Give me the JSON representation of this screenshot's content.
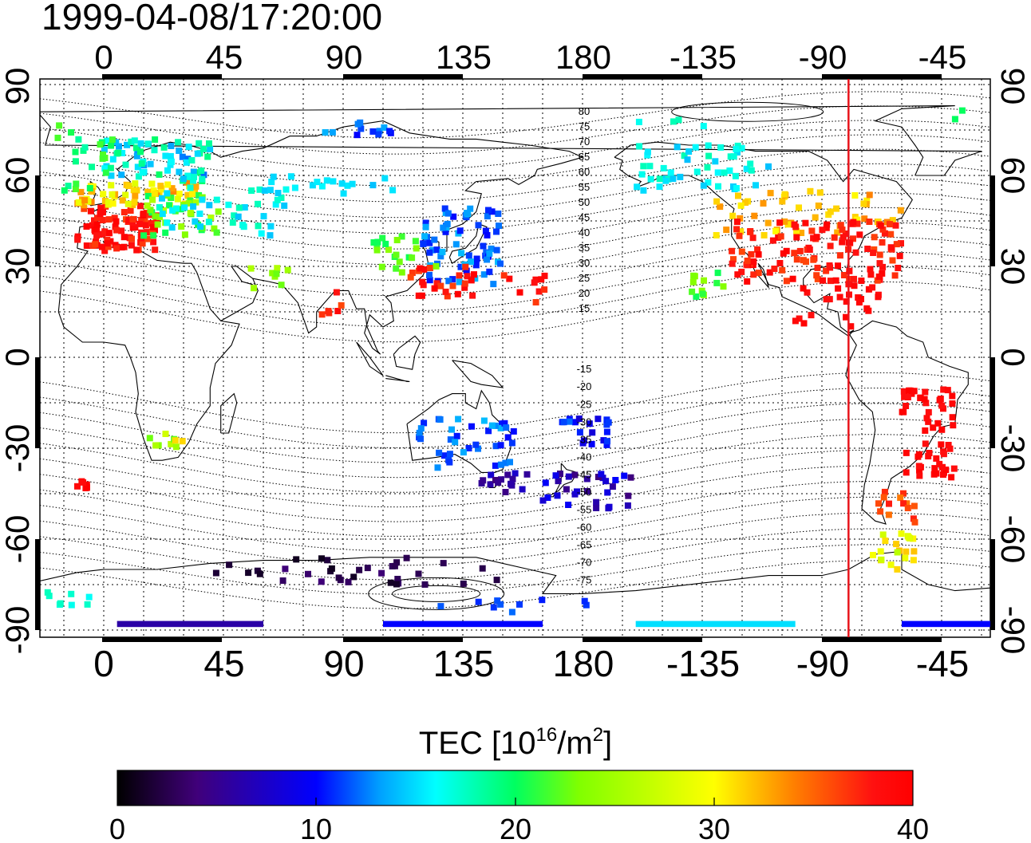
{
  "timestamp": "1999-04-08/17:20:00",
  "map": {
    "top_lon_labels": [
      "0",
      "45",
      "90",
      "135",
      "180",
      "-135",
      "-90",
      "-45"
    ],
    "bottom_lon_labels": [
      "0",
      "45",
      "90",
      "135",
      "180",
      "-135",
      "-90",
      "-45"
    ],
    "left_lat_labels": [
      "90",
      "60",
      "30",
      "0",
      "-30",
      "-60",
      "-90"
    ],
    "right_lat_labels": [
      "90",
      "60",
      "30",
      "0",
      "-30",
      "-60",
      "-90"
    ],
    "lon_ticks_deg": [
      0,
      45,
      90,
      135,
      180,
      225,
      270,
      315
    ],
    "lat_ticks_deg": [
      90,
      60,
      30,
      0,
      -30,
      -60,
      -90
    ],
    "lon_range": [
      -25,
      335
    ],
    "lat_range": [
      -92,
      92
    ],
    "contour_labels_north": [
      "80",
      "75",
      "70",
      "65",
      "60",
      "55",
      "50",
      "45",
      "40",
      "35",
      "30",
      "25",
      "20",
      "15"
    ],
    "contour_labels_south": [
      "-15",
      "-20",
      "-25",
      "-30",
      "-35",
      "-40",
      "-45",
      "-50",
      "-55",
      "-60",
      "-65",
      "-70",
      "-75"
    ],
    "terminator_longitude": -80,
    "terminator_color": "#e8141c",
    "grid": "dotted"
  },
  "colorbar": {
    "title_main": "TEC  [10",
    "title_exp1": "16",
    "title_mid": "/m",
    "title_exp2": "2",
    "title_end": "]",
    "tick_labels": [
      "0",
      "10",
      "20",
      "30",
      "40"
    ],
    "tick_values": [
      0,
      10,
      20,
      30,
      40
    ],
    "range": [
      0,
      40
    ],
    "colormap": [
      "#000000",
      "#40007a",
      "#0000ff",
      "#00a0ff",
      "#00ffff",
      "#00ff60",
      "#80ff00",
      "#ffff00",
      "#ff8000",
      "#ff1010",
      "#ff0000"
    ]
  }
}
